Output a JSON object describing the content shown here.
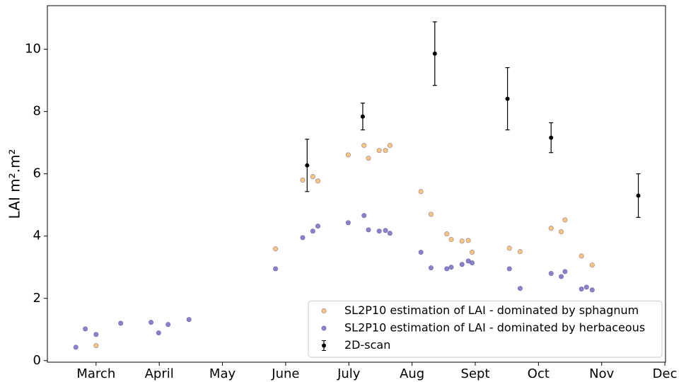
{
  "chart_data": {
    "type": "scatter",
    "y_label": "LAI m².m²",
    "xlim": [
      2.23,
      12.01
    ],
    "ylim": [
      -0.05,
      11.4
    ],
    "xticks": [
      {
        "value": 3,
        "label": "March"
      },
      {
        "value": 4,
        "label": "April"
      },
      {
        "value": 5,
        "label": "May"
      },
      {
        "value": 6,
        "label": "June"
      },
      {
        "value": 7,
        "label": "July"
      },
      {
        "value": 8,
        "label": "Aug"
      },
      {
        "value": 9,
        "label": "Sept"
      },
      {
        "value": 10,
        "label": "Oct"
      },
      {
        "value": 11,
        "label": "Nov"
      },
      {
        "value": 12,
        "label": "Dec"
      }
    ],
    "yticks": [
      0,
      2,
      4,
      6,
      8,
      10
    ],
    "legend": "lower right",
    "series": [
      {
        "name": "SL2P10 estimation of LAI - dominated by sphagnum",
        "color": "#fdc67e",
        "x": [
          3.0,
          5.84,
          6.27,
          6.43,
          6.51,
          6.99,
          7.24,
          7.31,
          7.48,
          7.58,
          7.65,
          8.14,
          8.3,
          8.55,
          8.62,
          8.79,
          8.89,
          8.95,
          9.54,
          9.71,
          10.2,
          10.36,
          10.42,
          10.68,
          10.85
        ],
        "values": [
          0.48,
          3.59,
          5.8,
          5.91,
          5.77,
          6.61,
          6.91,
          6.5,
          6.75,
          6.75,
          6.91,
          5.43,
          4.7,
          4.07,
          3.89,
          3.84,
          3.86,
          3.48,
          3.61,
          3.5,
          4.25,
          4.14,
          4.52,
          3.36,
          3.07
        ]
      },
      {
        "name": "SL2P10 estimation of LAI - dominated by herbaceous",
        "color": "#8a82cc",
        "x": [
          2.68,
          2.83,
          3.0,
          3.39,
          3.87,
          3.99,
          4.14,
          4.47,
          5.84,
          6.27,
          6.43,
          6.51,
          6.99,
          7.24,
          7.31,
          7.48,
          7.58,
          7.65,
          8.14,
          8.3,
          8.55,
          8.62,
          8.79,
          8.89,
          8.95,
          9.54,
          9.71,
          10.2,
          10.36,
          10.42,
          10.68,
          10.76,
          10.85
        ],
        "values": [
          0.43,
          1.02,
          0.84,
          1.2,
          1.23,
          0.89,
          1.16,
          1.32,
          2.95,
          3.95,
          4.16,
          4.32,
          4.43,
          4.66,
          4.2,
          4.16,
          4.18,
          4.09,
          3.48,
          2.98,
          2.95,
          3.0,
          3.09,
          3.2,
          3.14,
          2.95,
          2.32,
          2.8,
          2.7,
          2.86,
          2.3,
          2.36,
          2.27
        ]
      },
      {
        "name": "2D-scan",
        "color": "#000000",
        "x": [
          6.34,
          7.22,
          8.36,
          9.51,
          10.2,
          11.58
        ],
        "values": [
          6.27,
          7.84,
          9.86,
          8.41,
          7.16,
          5.3
        ],
        "errors": [
          0.84,
          0.43,
          1.02,
          1.0,
          0.48,
          0.7
        ]
      }
    ]
  }
}
